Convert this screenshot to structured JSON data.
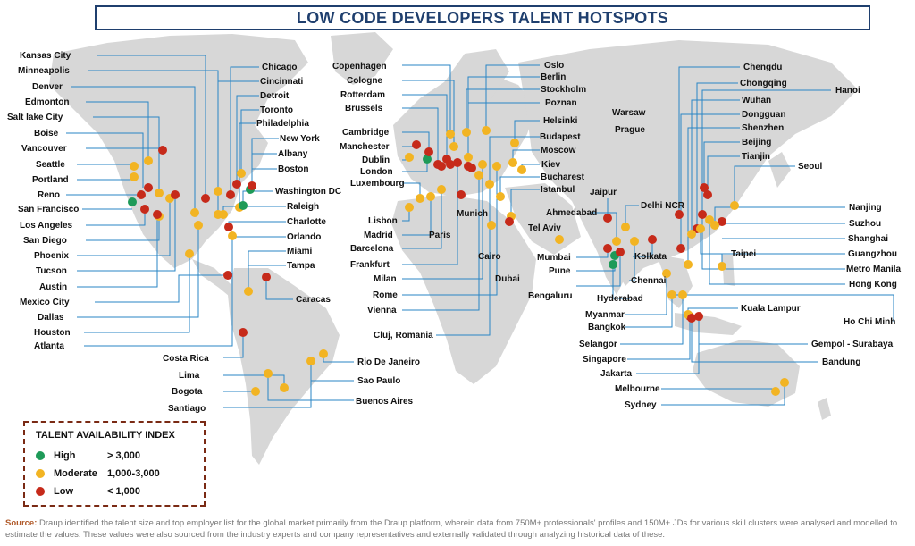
{
  "title": "LOW CODE DEVELOPERS TALENT HOTSPOTS",
  "legend": {
    "title": "TALENT AVAILABILITY INDEX",
    "items": [
      {
        "label": "High",
        "range": "> 3,000",
        "color": "#1e9a58"
      },
      {
        "label": "Moderate",
        "range": "1,000-3,000",
        "color": "#f2b423"
      },
      {
        "label": "Low",
        "range": "< 1,000",
        "color": "#c62a1a"
      }
    ]
  },
  "source": {
    "prefix": "Source:",
    "text": "Draup identified the talent size and top employer list for the global market primarily from the Draup platform, wherein data from 750M+ professionals' profiles and 150M+ JDs for various skill clusters were analysed and modelled to estimate the values. These values were also sourced from the industry experts and company representatives and externally validated through analyzing historical data of these."
  },
  "colors": {
    "title": "#1f3f6e",
    "land": "#d7d7d7",
    "leader": "#2a86c4",
    "high": "#1e9a58",
    "moderate": "#f2b423",
    "low": "#c62a1a"
  },
  "cities": {
    "kansas_city": "Kansas City",
    "minneapolis": "Minneapolis",
    "denver": "Denver",
    "edmonton": "Edmonton",
    "salt_lake_city": "Salt lake City",
    "boise": "Boise",
    "vancouver": "Vancouver",
    "seattle": "Seattle",
    "portland": "Portland",
    "reno": "Reno",
    "san_francisco": "San Francisco",
    "los_angeles": "Los Angeles",
    "san_diego": "San Diego",
    "phoenix": "Phoenix",
    "tucson": "Tucson",
    "austin": "Austin",
    "mexico_city": "Mexico City",
    "dallas": "Dallas",
    "houston": "Houston",
    "atlanta": "Atlanta",
    "chicago": "Chicago",
    "cincinnati": "Cincinnati",
    "detroit": "Detroit",
    "toronto": "Toronto",
    "philadelphia": "Philadelphia",
    "new_york": "New York",
    "albany": "Albany",
    "boston": "Boston",
    "washington_dc": "Washington DC",
    "raleigh": "Raleigh",
    "charlotte": "Charlotte",
    "orlando": "Orlando",
    "miami": "Miami",
    "tampa": "Tampa",
    "caracas": "Caracas",
    "costa_rica": "Costa Rica",
    "lima": "Lima",
    "bogota": "Bogota",
    "santiago": "Santiago",
    "rio_de_janeiro": "Rio De Janeiro",
    "sao_paulo": "Sao Paulo",
    "buenos_aires": "Buenos Aires",
    "copenhagen": "Copenhagen",
    "cologne": "Cologne",
    "rotterdam": "Rotterdam",
    "brussels": "Brussels",
    "cambridge": "Cambridge",
    "manchester": "Manchester",
    "dublin": "Dublin",
    "london": "London",
    "luxembourg": "Luxembourg",
    "lisbon": "Lisbon",
    "madrid": "Madrid",
    "paris": "Paris",
    "barcelona": "Barcelona",
    "frankfurt": "Frankfurt",
    "milan": "Milan",
    "rome": "Rome",
    "vienna": "Vienna",
    "cluj_romania": "Cluj, Romania",
    "munich": "Munich",
    "cairo": "Cairo",
    "dubai": "Dubai",
    "tel_aviv": "Tel Aviv",
    "oslo": "Oslo",
    "berlin": "Berlin",
    "stockholm": "Stockholm",
    "poznan": "Poznan",
    "warsaw": "Warsaw",
    "helsinki": "Helsinki",
    "prague": "Prague",
    "budapest": "Budapest",
    "moscow": "Moscow",
    "kiev": "Kiev",
    "bucharest": "Bucharest",
    "istanbul": "Istanbul",
    "jaipur": "Jaipur",
    "delhi_ncr": "Delhi NCR",
    "ahmedabad": "Ahmedabad",
    "mumbai": "Mumbai",
    "pune": "Pune",
    "bengaluru": "Bengaluru",
    "kolkata": "Kolkata",
    "chennai": "Chennai",
    "hyderabad": "Hyderabad",
    "myanmar": "Myanmar",
    "bangkok": "Bangkok",
    "selangor": "Selangor",
    "singapore": "Singapore",
    "jakarta": "Jakarta",
    "melbourne": "Melbourne",
    "sydney": "Sydney",
    "chengdu": "Chengdu",
    "chongqing": "Chongqing",
    "hanoi": "Hanoi",
    "wuhan": "Wuhan",
    "dongguan": "Dongguan",
    "shenzhen": "Shenzhen",
    "beijing": "Beijing",
    "tianjin": "Tianjin",
    "seoul": "Seoul",
    "nanjing": "Nanjing",
    "suzhou": "Suzhou",
    "shanghai": "Shanghai",
    "guangzhou": "Guangzhou",
    "taipei": "Taipei",
    "metro_manila": "Metro Manila",
    "hong_kong": "Hong Kong",
    "kuala_lampur": "Kuala Lampur",
    "ho_chi_minh": "Ho Chi Minh",
    "gempol_surabaya": "Gempol - Surabaya",
    "bandung": "Bandung"
  }
}
